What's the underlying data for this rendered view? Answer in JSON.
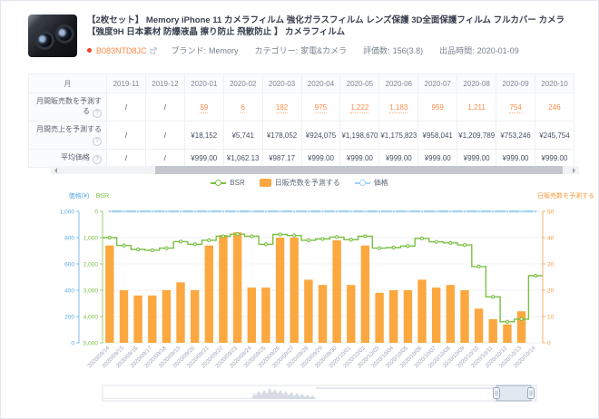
{
  "product": {
    "title": "【2枚セット】 Memory iPhone 11 カメラフィルム 強化ガラスフィルム レンズ保護 3D全面保護フィルム フルカバー カメラ 【強度9H 日本素材 防爆液晶 擦り防止 飛散防止 】 カメラフィルム",
    "asin": "B083NTD8JC",
    "meta": [
      {
        "label": "ブランド:",
        "value": "Memory"
      },
      {
        "label": "カテゴリー:",
        "value": "家電&カメラ"
      },
      {
        "label": "評価数:",
        "value": "156(3.8)"
      },
      {
        "label": "出品時間:",
        "value": "2020-01-09"
      }
    ]
  },
  "table": {
    "month_header": "月",
    "months": [
      "2019-11",
      "2019-12",
      "2020-01",
      "2020-02",
      "2020-03",
      "2020-04",
      "2020-05",
      "2020-06",
      "2020-07",
      "2020-08",
      "2020-09",
      "2020-10"
    ],
    "rows": [
      {
        "label": "月間販売数を予測する",
        "link": true,
        "values": [
          "/",
          "/",
          "59",
          "6",
          "182",
          "975",
          "1,222",
          "1,183",
          "959",
          "1,211",
          "754",
          "246"
        ],
        "underline": [
          false,
          false,
          true,
          true,
          true,
          true,
          true,
          true,
          false,
          false,
          true,
          false
        ]
      },
      {
        "label": "月間売上を予測する",
        "link": false,
        "values": [
          "/",
          "/",
          "¥18,152",
          "¥5,741",
          "¥178,052",
          "¥924,075",
          "¥1,198,670",
          "¥1,175,823",
          "¥958,041",
          "¥1,209,789",
          "¥753,246",
          "¥245,754"
        ],
        "underline": [
          false,
          false,
          false,
          false,
          false,
          false,
          false,
          false,
          false,
          false,
          false,
          false
        ]
      },
      {
        "label": "平均価格",
        "link": false,
        "values": [
          "/",
          "/",
          "¥999.00",
          "¥1,062.13",
          "¥987.17",
          "¥999.00",
          "¥999.00",
          "¥999.00",
          "¥999.00",
          "¥999.00",
          "¥999.00",
          "¥999.00"
        ],
        "underline": [
          false,
          false,
          false,
          false,
          false,
          false,
          false,
          false,
          false,
          false,
          false,
          false
        ]
      }
    ]
  },
  "legend": [
    {
      "label": "BSR",
      "type": "line",
      "color": "#7bc043"
    },
    {
      "label": "日販売数を予測する",
      "type": "bar",
      "color": "#fba840"
    },
    {
      "label": "価格",
      "type": "line",
      "color": "#a5d3f2"
    }
  ],
  "chart_data": {
    "type": "bar+line",
    "x": [
      "2020/09/14",
      "2020/09/15",
      "2020/09/16",
      "2020/09/17",
      "2020/09/18",
      "2020/09/19",
      "2020/09/20",
      "2020/09/21",
      "2020/09/22",
      "2020/09/23",
      "2020/09/24",
      "2020/09/25",
      "2020/09/26",
      "2020/09/27",
      "2020/09/28",
      "2020/09/29",
      "2020/09/30",
      "2020/10/01",
      "2020/10/02",
      "2020/10/03",
      "2020/10/04",
      "2020/10/05",
      "2020/10/06",
      "2020/10/07",
      "2020/10/08",
      "2020/10/09",
      "2020/10/10",
      "2020/10/11",
      "2020/10/12",
      "2020/10/13",
      "2020/10/14"
    ],
    "series": [
      {
        "name": "BSR",
        "type": "line",
        "axis": "bsr",
        "color": "#7bc043",
        "values": [
          1000,
          1300,
          1450,
          1480,
          1400,
          1150,
          1250,
          1100,
          950,
          870,
          950,
          1250,
          880,
          920,
          1100,
          1050,
          980,
          1080,
          950,
          1400,
          1380,
          1320,
          1030,
          1160,
          1200,
          1280,
          2100,
          3250,
          4200,
          4100,
          2450
        ]
      },
      {
        "name": "日販売数を予測する",
        "type": "bar",
        "axis": "sales",
        "color": "#fba840",
        "values": [
          37,
          20,
          18,
          18,
          20,
          23,
          20,
          37,
          41,
          42,
          21,
          21,
          40,
          40,
          24,
          22,
          39,
          22,
          37,
          19,
          20,
          20,
          24,
          21,
          22,
          20,
          13,
          9,
          7,
          12,
          0
        ]
      },
      {
        "name": "価格",
        "type": "line",
        "axis": "price",
        "color": "#a5d3f2",
        "values": [
          999,
          999,
          999,
          999,
          999,
          999,
          999,
          999,
          999,
          999,
          999,
          999,
          999,
          999,
          999,
          999,
          999,
          999,
          999,
          999,
          999,
          999,
          999,
          999,
          999,
          999,
          999,
          999,
          999,
          999,
          999
        ]
      }
    ],
    "axes": {
      "price": {
        "title": "価格(¥)",
        "color": "#59a9e8",
        "min": 0,
        "max": 1000,
        "inverted": false,
        "ticks": [
          "1,000",
          "800",
          "600",
          "400",
          "200",
          "0"
        ]
      },
      "bsr": {
        "title": "BSR",
        "color": "#7bc043",
        "min": 0,
        "max": 5000,
        "inverted": true,
        "ticks": [
          "0",
          "1,000",
          "2,000",
          "3,000",
          "4,000",
          "5,000"
        ]
      },
      "sales": {
        "title": "日販売数を予測する",
        "color": "#f59a3e",
        "min": 0,
        "max": 50,
        "ticks": [
          "50",
          "40",
          "30",
          "20",
          "10",
          "0"
        ]
      }
    },
    "grid": true,
    "legend_position": "top-center"
  }
}
